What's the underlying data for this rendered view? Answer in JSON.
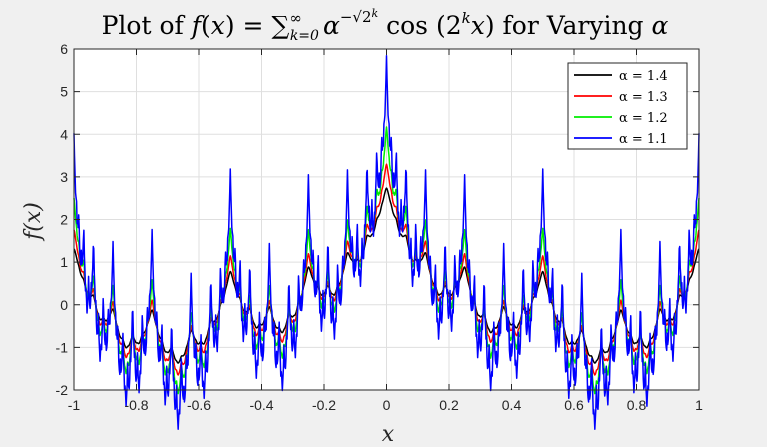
{
  "chart_data": {
    "type": "line",
    "title": {
      "prefix": "Plot of ",
      "f": "f",
      "x": "x",
      "equals": " = ",
      "sum": "∑",
      "sum_upper": "∞",
      "sum_lower": "k=0",
      "alpha": "α",
      "exponent": "−√2",
      "exponent_k": "k",
      "cos": " cos (2",
      "inner_k": "k",
      "inner_x": "x",
      "close": ")",
      "suffix": " for Varying ",
      "suffix_alpha": "α"
    },
    "xlabel": "x",
    "ylabel": "f(x)",
    "xlim": [
      -1,
      1
    ],
    "ylim": [
      -2,
      6
    ],
    "x_ticks": [
      -1,
      -0.8,
      -0.6,
      -0.4,
      -0.2,
      0,
      0.2,
      0.4,
      0.6,
      0.8,
      1
    ],
    "x_tick_labels": [
      "-1",
      "-0.8",
      "-0.6",
      "-0.4",
      "-0.2",
      "0",
      "0.2",
      "0.4",
      "0.6",
      "0.8",
      "1"
    ],
    "y_ticks": [
      -2,
      -1,
      0,
      1,
      2,
      3,
      4,
      5,
      6
    ],
    "y_tick_labels": [
      "-2",
      "-1",
      "0",
      "1",
      "2",
      "3",
      "4",
      "5",
      "6"
    ],
    "grid": true,
    "legend_position": "top-right",
    "function": "sum_{k=0}^{K} alpha^(-sqrt(2^k)) * cos(2^k * pi * x)",
    "terms": 13,
    "samples": 1201,
    "series": [
      {
        "name": "α = 1.4",
        "alpha": 1.4,
        "color": "#000000"
      },
      {
        "name": "α = 1.3",
        "alpha": 1.3,
        "color": "#ff0000"
      },
      {
        "name": "α = 1.2",
        "alpha": 1.2,
        "color": "#00ee00"
      },
      {
        "name": "α = 1.1",
        "alpha": 1.1,
        "color": "#0000ff"
      }
    ]
  }
}
